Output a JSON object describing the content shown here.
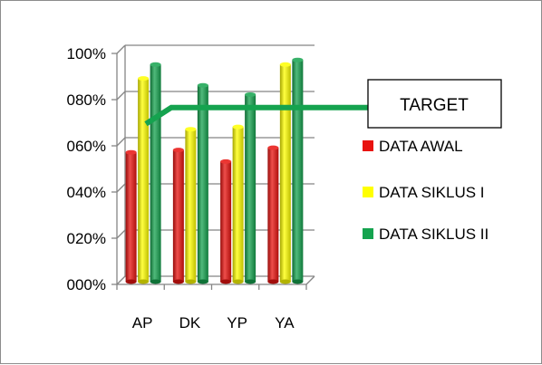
{
  "chart_data": {
    "type": "bar",
    "categories": [
      "AP",
      "DK",
      "YP",
      "YA"
    ],
    "series": [
      {
        "name": "DATA AWAL",
        "values": [
          56,
          57,
          52,
          58
        ],
        "color": "#e8130f"
      },
      {
        "name": "DATA SIKLUS I",
        "values": [
          88,
          66,
          67,
          94
        ],
        "color": "#ffff00"
      },
      {
        "name": "DATA SIKLUS II",
        "values": [
          94,
          85,
          81,
          96
        ],
        "color": "#15a34f"
      }
    ],
    "ylim": [
      0,
      100
    ],
    "ytick_values": [
      0,
      20,
      40,
      60,
      80,
      100
    ],
    "ytick_labels": [
      "000%",
      "020%",
      "040%",
      "060%",
      "080%",
      "100%"
    ],
    "grid": true,
    "style": "3d-cylinder",
    "legend_position": "right",
    "target": {
      "label": "TARGET",
      "value": 75,
      "color": "#15a34f"
    }
  }
}
